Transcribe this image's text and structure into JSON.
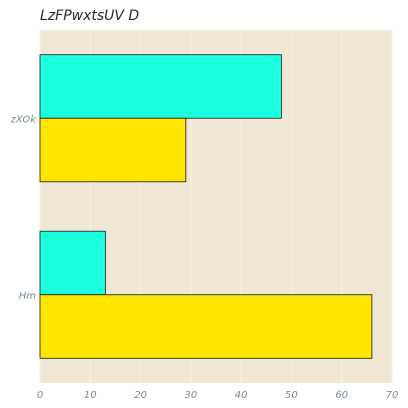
{
  "chart_data": {
    "type": "bar",
    "orientation": "horizontal",
    "title": "LzFPwxtsUV D",
    "xlabel": "",
    "ylabel": "",
    "categories": [
      "zXOk",
      "Hm"
    ],
    "series": [
      {
        "color": "#1affdd",
        "values": [
          48,
          13
        ]
      },
      {
        "color": "#ffe500",
        "values": [
          29,
          66
        ]
      }
    ],
    "xlim": [
      0,
      70
    ],
    "xticks": [
      0,
      10,
      20,
      30,
      40,
      50,
      60,
      70
    ],
    "grid": true,
    "legend": "none",
    "colors": {
      "plot_background": "#efe6d4",
      "grid": "#f7f1e6",
      "bar_edge": "#1a1a1a",
      "tick_label": "#7a8a9a",
      "title": "#2a2a2a"
    }
  }
}
